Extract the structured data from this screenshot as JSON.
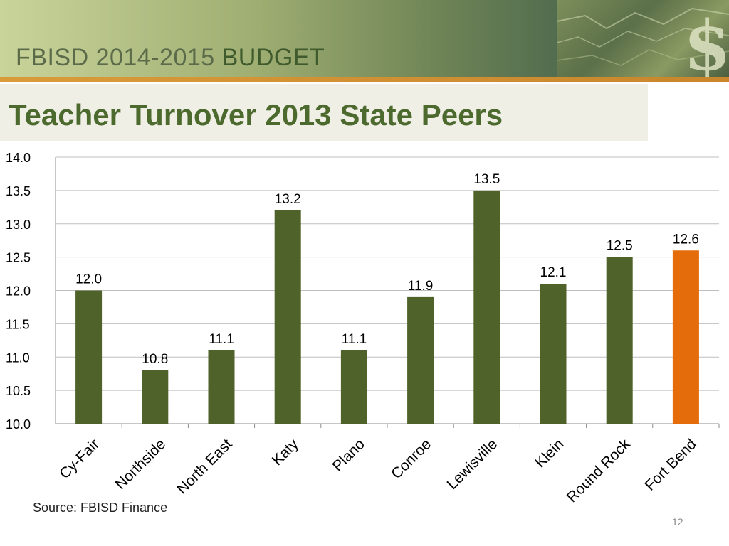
{
  "header": {
    "org_label": "FBISD 2014-2015 ",
    "budget_label": "BUDGET"
  },
  "slide": {
    "title": "Teacher Turnover 2013 State Peers",
    "source": "Source: FBISD Finance",
    "page_number": "12"
  },
  "colors": {
    "bar_default": "#4f6229",
    "bar_highlight": "#e46c0a",
    "grid": "#bfbfbf",
    "title": "#4d6a2e"
  },
  "chart_data": {
    "type": "bar",
    "title": "",
    "xlabel": "",
    "ylabel": "",
    "categories": [
      "Cy-Fair",
      "Northside",
      "North East",
      "Katy",
      "Plano",
      "Conroe",
      "Lewisville",
      "Klein",
      "Round Rock",
      "Fort Bend"
    ],
    "values": [
      12.0,
      10.8,
      11.1,
      13.2,
      11.1,
      11.9,
      13.5,
      12.1,
      12.5,
      12.6
    ],
    "value_labels": [
      "12.0",
      "10.8",
      "11.1",
      "13.2",
      "11.1",
      "11.9",
      "13.5",
      "12.1",
      "12.5",
      "12.6"
    ],
    "ylim": [
      10.0,
      14.0
    ],
    "yticks": [
      "10.0",
      "10.5",
      "11.0",
      "11.5",
      "12.0",
      "12.5",
      "13.0",
      "13.5",
      "14.0"
    ],
    "highlight_category": "Fort Bend",
    "grid": true,
    "legend": "none"
  }
}
